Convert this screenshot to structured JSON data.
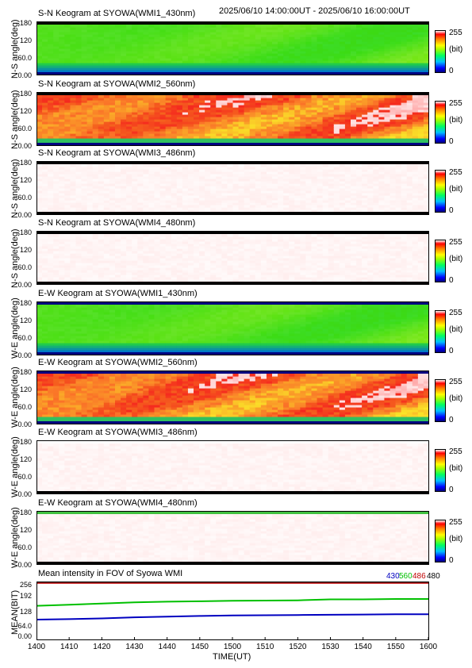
{
  "header": {
    "date_range": "2025/06/10 14:00:00UT - 2025/06/10 16:00:00UT"
  },
  "panels": [
    {
      "title": "S-N Keogram at SYOWA(WMI1_430nm)",
      "ylabel": "N-S angle(deg)",
      "kind": "green",
      "top_band": "#000000",
      "bottom_band": "#000080"
    },
    {
      "title": "S-N Keogram at SYOWA(WMI2_560nm)",
      "ylabel": "N-S angle(deg)",
      "kind": "red",
      "top_band": "#000000",
      "bottom_band": "#000080"
    },
    {
      "title": "S-N Keogram at SYOWA(WMI3_486nm)",
      "ylabel": "N-S angle(deg)",
      "kind": "white",
      "top_band": "#000000",
      "bottom_band": "#000000"
    },
    {
      "title": "S-N Keogram at SYOWA(WMI4_480nm)",
      "ylabel": "N-S angle(deg)",
      "kind": "white",
      "top_band": "#000000",
      "bottom_band": "#000000"
    },
    {
      "title": "E-W Keogram at SYOWA(WMI1_430nm)",
      "ylabel": "W-E angle(deg)",
      "kind": "green",
      "top_band": "#000080",
      "bottom_band": "#000080"
    },
    {
      "title": "E-W Keogram at SYOWA(WMI2_560nm)",
      "ylabel": "W-E angle(deg)",
      "kind": "red",
      "top_band": "#000080",
      "bottom_band": "#000080"
    },
    {
      "title": "E-W Keogram at SYOWA(WMI3_486nm)",
      "ylabel": "W-E angle(deg)",
      "kind": "white",
      "top_band": "#ffffff",
      "bottom_band": "#000000"
    },
    {
      "title": "E-W Keogram at SYOWA(WMI4_480nm)",
      "ylabel": "W-E angle(deg)",
      "kind": "white",
      "top_band": "#40c040",
      "bottom_band": "#000000"
    }
  ],
  "keogram_yticks": [
    "180",
    "120",
    "60.0",
    "0.00"
  ],
  "colorbar": {
    "max": "255",
    "unit": "(bit)",
    "min": "0"
  },
  "mean_panel": {
    "title": "Mean intensity in FOV of Syowa WMI",
    "ylabel": "MEAN(BIT)",
    "yticks": [
      "256",
      "192",
      "128",
      "64.0",
      "0.00"
    ],
    "legend": [
      {
        "label": "430",
        "color": "#0000c0"
      },
      {
        "label": "560",
        "color": "#00c000"
      },
      {
        "label": "486",
        "color": "#c00000"
      },
      {
        "label": "480",
        "color": "#000000"
      }
    ]
  },
  "xaxis": {
    "label": "TIME(UT)",
    "ticks": [
      "1400",
      "1410",
      "1420",
      "1430",
      "1440",
      "1450",
      "1500",
      "1510",
      "1520",
      "1530",
      "1540",
      "1550",
      "1600"
    ]
  },
  "chart_data": {
    "type": "line",
    "title": "Mean intensity in FOV of Syowa WMI",
    "xlabel": "TIME(UT)",
    "ylabel": "MEAN(BIT)",
    "x": [
      "1400",
      "1410",
      "1420",
      "1430",
      "1440",
      "1450",
      "1500",
      "1510",
      "1520",
      "1530",
      "1540",
      "1550",
      "1600"
    ],
    "ylim": [
      0,
      256
    ],
    "series": [
      {
        "name": "430",
        "color": "#0000c0",
        "values": [
          90,
          92,
          95,
          100,
          103,
          106,
          108,
          109,
          110,
          111,
          112,
          113,
          113
        ]
      },
      {
        "name": "560",
        "color": "#00c000",
        "values": [
          150,
          155,
          160,
          165,
          168,
          170,
          172,
          173,
          174,
          178,
          178,
          180,
          180
        ]
      },
      {
        "name": "486",
        "color": "#c00000",
        "values": [
          250,
          250,
          250,
          250,
          250,
          250,
          250,
          250,
          250,
          250,
          250,
          250,
          250
        ]
      },
      {
        "name": "480",
        "color": "#000000",
        "values": [
          255,
          255,
          255,
          255,
          255,
          255,
          255,
          255,
          255,
          255,
          255,
          255,
          255
        ]
      }
    ]
  }
}
